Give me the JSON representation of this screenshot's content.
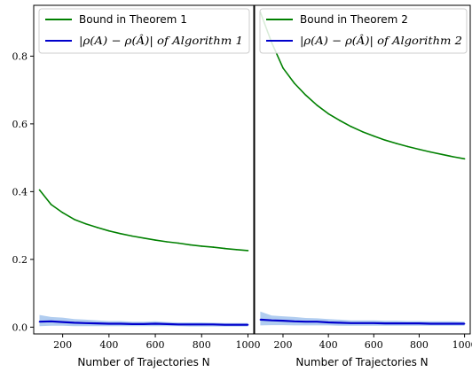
{
  "chart_data": [
    {
      "type": "line",
      "xlabel": "Number of Trajectories N",
      "ylabel": "",
      "xlim": [
        75,
        1025
      ],
      "ylim": [
        -0.02,
        0.95
      ],
      "xticks": [
        "200",
        "400",
        "600",
        "800",
        "1000"
      ],
      "yticks": [
        "0.0",
        "0.2",
        "0.4",
        "0.6",
        "0.8"
      ],
      "legend_position": "top-left",
      "grid": false,
      "x": [
        100,
        150,
        200,
        250,
        300,
        350,
        400,
        450,
        500,
        550,
        600,
        650,
        700,
        750,
        800,
        850,
        900,
        950,
        1000
      ],
      "series": [
        {
          "name": "Bound in Theorem 1",
          "color": "#008000",
          "values": [
            0.405,
            0.362,
            0.338,
            0.318,
            0.305,
            0.294,
            0.284,
            0.276,
            0.269,
            0.263,
            0.257,
            0.252,
            0.248,
            0.243,
            0.239,
            0.236,
            0.232,
            0.229,
            0.226
          ]
        },
        {
          "name": "|ρ(A) − ρ(Â)| of Algorithm 1",
          "color": "#0000cc",
          "band_color": "#a8c8ee",
          "values": [
            0.016,
            0.017,
            0.015,
            0.013,
            0.012,
            0.011,
            0.01,
            0.01,
            0.009,
            0.009,
            0.01,
            0.009,
            0.008,
            0.008,
            0.008,
            0.008,
            0.007,
            0.007,
            0.007
          ],
          "upper": [
            0.036,
            0.03,
            0.028,
            0.024,
            0.022,
            0.02,
            0.018,
            0.018,
            0.016,
            0.016,
            0.017,
            0.015,
            0.014,
            0.014,
            0.014,
            0.013,
            0.012,
            0.012,
            0.012
          ],
          "lower": [
            0.003,
            0.004,
            0.004,
            0.003,
            0.003,
            0.003,
            0.003,
            0.003,
            0.003,
            0.003,
            0.003,
            0.003,
            0.003,
            0.002,
            0.002,
            0.002,
            0.002,
            0.002,
            0.002
          ]
        }
      ]
    },
    {
      "type": "line",
      "xlabel": "Number of Trajectories N",
      "ylabel": "",
      "xlim": [
        75,
        1025
      ],
      "ylim": [
        -0.02,
        0.95
      ],
      "xticks": [
        "200",
        "400",
        "600",
        "800",
        "1000"
      ],
      "yticks": [],
      "legend_position": "top-left",
      "grid": false,
      "x": [
        100,
        150,
        200,
        250,
        300,
        350,
        400,
        450,
        500,
        550,
        600,
        650,
        700,
        750,
        800,
        850,
        900,
        950,
        1000
      ],
      "series": [
        {
          "name": "Bound in Theorem 2",
          "color": "#008000",
          "values": [
            0.93,
            0.84,
            0.765,
            0.72,
            0.685,
            0.655,
            0.63,
            0.61,
            0.592,
            0.577,
            0.564,
            0.552,
            0.542,
            0.533,
            0.525,
            0.517,
            0.51,
            0.503,
            0.497
          ]
        },
        {
          "name": "|ρ(A) − ρ(Â)| of Algorithm 2",
          "color": "#0000cc",
          "band_color": "#a8c8ee",
          "values": [
            0.022,
            0.02,
            0.019,
            0.017,
            0.016,
            0.016,
            0.014,
            0.013,
            0.012,
            0.012,
            0.012,
            0.011,
            0.011,
            0.011,
            0.011,
            0.01,
            0.01,
            0.01,
            0.01
          ],
          "upper": [
            0.046,
            0.034,
            0.032,
            0.03,
            0.027,
            0.026,
            0.024,
            0.022,
            0.02,
            0.02,
            0.02,
            0.019,
            0.019,
            0.018,
            0.018,
            0.017,
            0.017,
            0.017,
            0.016
          ],
          "lower": [
            0.005,
            0.006,
            0.006,
            0.005,
            0.005,
            0.005,
            0.005,
            0.004,
            0.004,
            0.004,
            0.004,
            0.004,
            0.004,
            0.004,
            0.004,
            0.004,
            0.004,
            0.004,
            0.004
          ]
        }
      ]
    }
  ]
}
